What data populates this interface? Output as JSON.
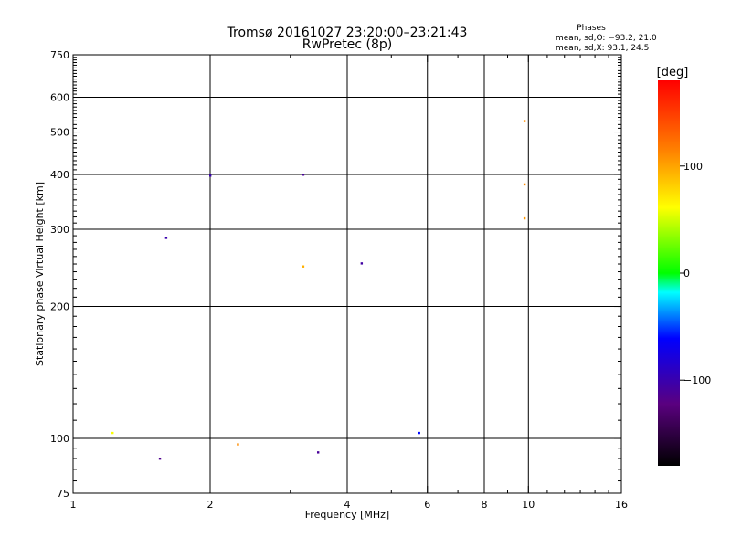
{
  "chart_data": {
    "type": "scatter",
    "title": "Tromsø 20161027 23:20:00–23:21:43",
    "subtitle": "RwPretec (8p)",
    "xlabel": "Frequency [MHz]",
    "ylabel": "Stationary phase Virtual Height [km]",
    "x_scale": "log",
    "y_scale": "log",
    "xlim": [
      1,
      16
    ],
    "ylim": [
      75,
      750
    ],
    "x_ticks": [
      1,
      2,
      4,
      6,
      8,
      10,
      16
    ],
    "y_ticks": [
      75,
      100,
      200,
      300,
      400,
      500,
      600,
      750
    ],
    "x_grid": [
      2,
      4,
      6,
      8,
      10
    ],
    "y_grid": [
      100,
      200,
      300,
      400,
      500,
      600
    ],
    "grid": true,
    "stats": {
      "title": "Phases",
      "line_o": "mean, sd,O: −93.2, 21.0",
      "line_x": "mean, sd,X:  93.1, 24.5"
    },
    "colorbar": {
      "label": "[deg]",
      "range": [
        -180,
        180
      ],
      "ticks": [
        100,
        0,
        -100
      ],
      "tick_labels": [
        "100",
        "0",
        "−100"
      ]
    },
    "series": [
      {
        "values": [
          [
            1.22,
            103,
            60
          ],
          [
            1.55,
            90,
            -115
          ],
          [
            1.6,
            287,
            -100
          ],
          [
            2.0,
            398,
            -100
          ],
          [
            2.3,
            97,
            110
          ],
          [
            3.2,
            400,
            -110
          ],
          [
            3.2,
            247,
            95
          ],
          [
            3.45,
            93,
            -110
          ],
          [
            9.8,
            530,
            110
          ],
          [
            9.8,
            380,
            110
          ],
          [
            9.8,
            318,
            105
          ],
          [
            4.3,
            251,
            -105
          ],
          [
            5.75,
            103,
            -60
          ]
        ]
      }
    ]
  }
}
